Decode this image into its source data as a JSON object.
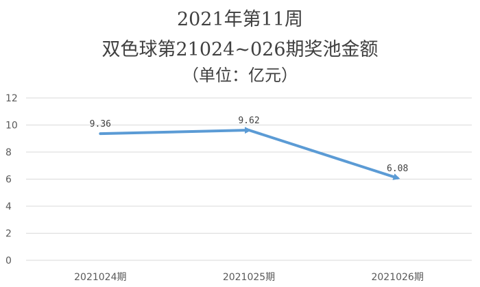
{
  "chart_data": {
    "type": "line",
    "title": "2021年第11周",
    "subtitle": "双色球第21024~026期奖池金额",
    "unit": "（单位：亿元）",
    "categories": [
      "2021024期",
      "2021025期",
      "2021026期"
    ],
    "series": [
      {
        "values": [
          9.36,
          9.62,
          6.08
        ],
        "data_labels": [
          "9.36",
          "9.62",
          "6.08"
        ]
      }
    ],
    "ylim": [
      0,
      12
    ],
    "yticks": [
      "0",
      "2",
      "4",
      "6",
      "8",
      "10",
      "12"
    ],
    "grid": true,
    "legend": "none",
    "line_color": "#5B9BD5",
    "grid_color": "#D9D9D9"
  }
}
